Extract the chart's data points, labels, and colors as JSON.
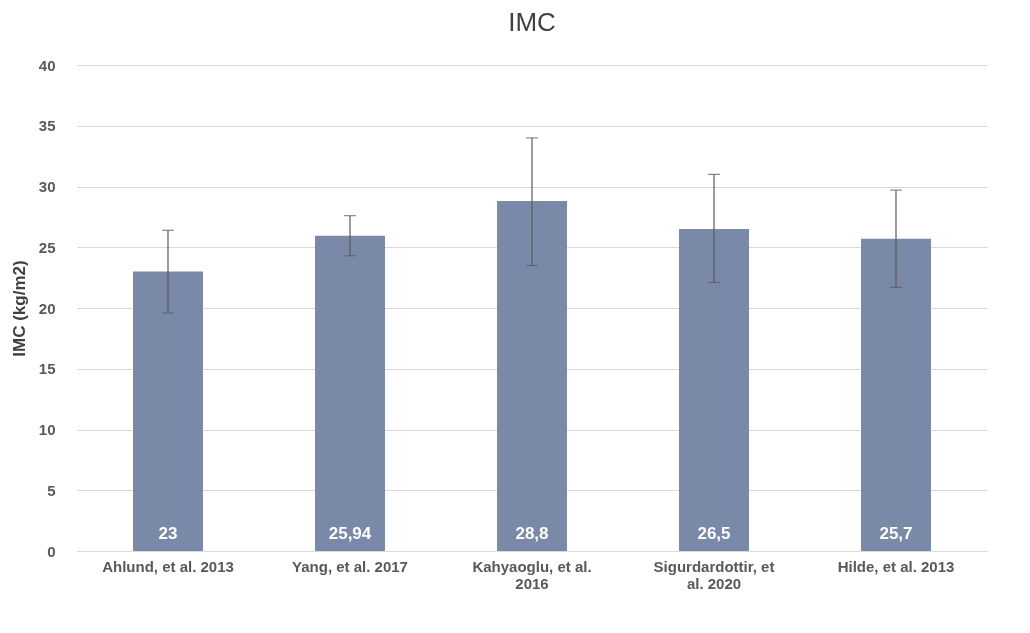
{
  "chart_data": {
    "type": "bar",
    "title": "IMC",
    "ylabel": "IMC (kg/m2)",
    "categories": [
      "Ahlund, et al. 2013",
      "Yang, et al. 2017",
      "Kahyaoglu, et al. 2016",
      "Sigurdardottir, et al. 2020",
      "Hilde, et al. 2013"
    ],
    "values": [
      23,
      25.94,
      28.8,
      26.5,
      25.7
    ],
    "value_labels": [
      "23",
      "25,94",
      "28,8",
      "26,5",
      "25,7"
    ],
    "errors": [
      [
        19.6,
        26.4
      ],
      [
        24.3,
        27.6
      ],
      [
        23.5,
        34.0
      ],
      [
        22.1,
        31.0
      ],
      [
        21.7,
        29.7
      ]
    ],
    "color": "#7a89a8",
    "ylim": [
      0,
      40
    ],
    "yticks": [
      0,
      5,
      10,
      15,
      20,
      25,
      30,
      35,
      40
    ],
    "grid": "y"
  }
}
